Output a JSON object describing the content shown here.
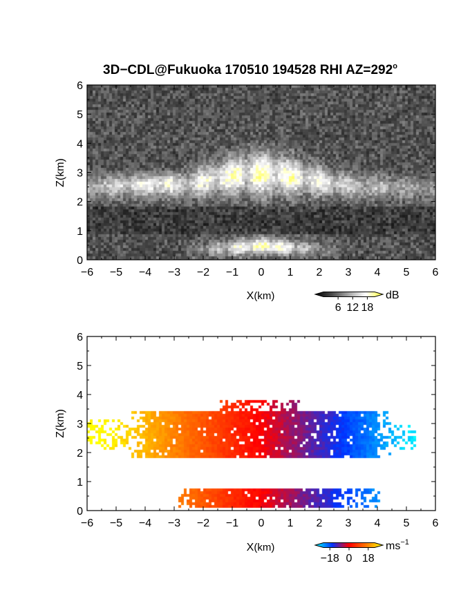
{
  "title": {
    "main": "3D−CDL@Fukuoka 170510 194528 RHI AZ=292",
    "sup": "o"
  },
  "chart_data": [
    {
      "type": "heatmap",
      "name": "intensity",
      "xlabel": {
        "main": "X",
        "unit": "(km)"
      },
      "ylabel": "Z(km)",
      "xlim": [
        -6,
        6
      ],
      "ylim": [
        0,
        6
      ],
      "xticks": [
        "−6",
        "−5",
        "−4",
        "−3",
        "−2",
        "−1",
        "0",
        "1",
        "2",
        "3",
        "4",
        "5",
        "6"
      ],
      "yticks": [
        "0",
        "1",
        "2",
        "3",
        "4",
        "5",
        "6"
      ],
      "colorbar": {
        "unit": "dB",
        "ticks": [
          "6",
          "12",
          "18"
        ],
        "range": [
          0,
          21
        ],
        "colors": [
          "#000000",
          "#4a4a4a",
          "#a8a8a8",
          "#ffffff",
          "#ffff33"
        ]
      }
    },
    {
      "type": "heatmap",
      "name": "velocity",
      "xlabel": {
        "main": "X",
        "unit": "(km)"
      },
      "ylabel": "Z(km)",
      "xlim": [
        -6,
        6
      ],
      "ylim": [
        0,
        6
      ],
      "xticks": [
        "−6",
        "−5",
        "−4",
        "−3",
        "−2",
        "−1",
        "0",
        "1",
        "2",
        "3",
        "4",
        "5",
        "6"
      ],
      "yticks": [
        "0",
        "1",
        "2",
        "3",
        "4",
        "5",
        "6"
      ],
      "colorbar": {
        "unit": {
          "main": "ms",
          "sup": "−1"
        },
        "ticks": [
          "−18",
          "0",
          "18"
        ],
        "range": [
          -24,
          24
        ],
        "colors": [
          "#00ffff",
          "#0033ff",
          "#ff0000",
          "#ff7700",
          "#ffff00"
        ]
      }
    }
  ]
}
